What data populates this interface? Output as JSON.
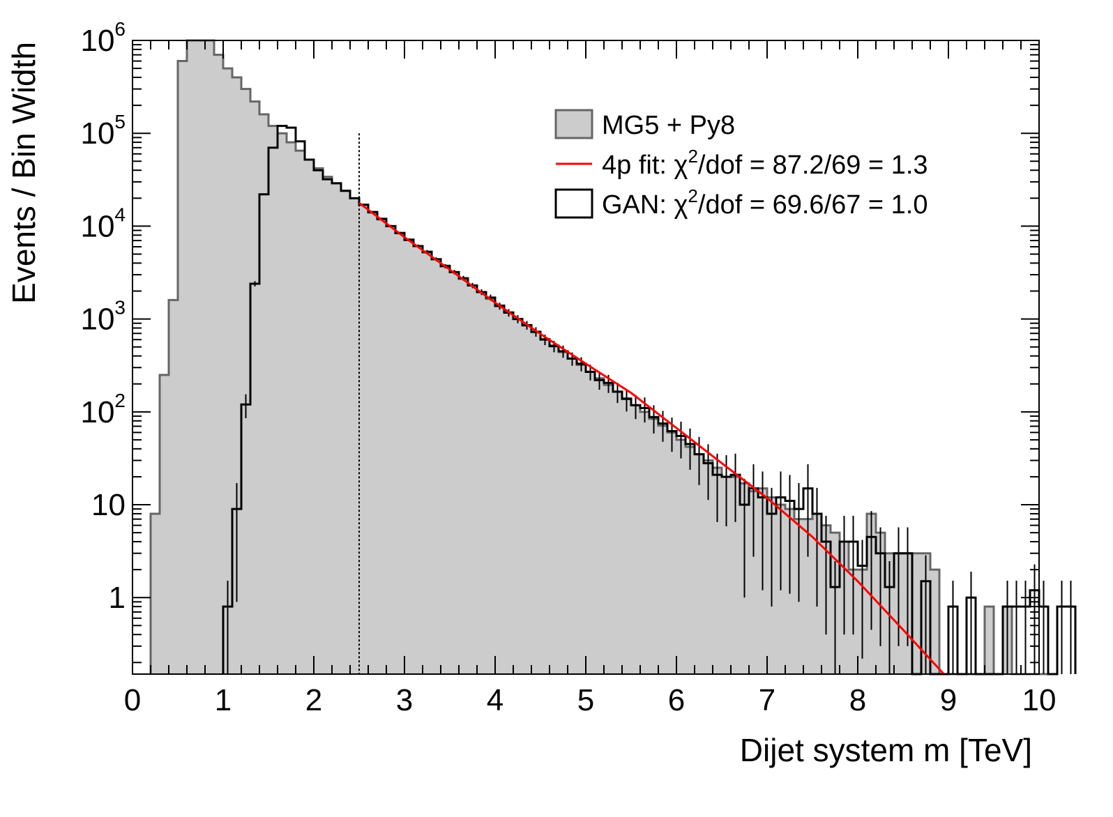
{
  "chart_data": {
    "type": "histogram",
    "xlabel": "Dijet system m [TeV]",
    "ylabel": "Events / Bin Width",
    "xlim": [
      0,
      10
    ],
    "ylim": [
      0.15,
      1000000
    ],
    "yscale": "log",
    "x_ticks": [
      "0",
      "1",
      "2",
      "3",
      "4",
      "5",
      "6",
      "7",
      "8",
      "9",
      "10"
    ],
    "y_ticks": [
      {
        "value": 1,
        "base": "1",
        "exp": ""
      },
      {
        "value": 10,
        "base": "10",
        "exp": ""
      },
      {
        "value": 100,
        "base": "10",
        "exp": "2"
      },
      {
        "value": 1000,
        "base": "10",
        "exp": "3"
      },
      {
        "value": 10000,
        "base": "10",
        "exp": "4"
      },
      {
        "value": 100000,
        "base": "10",
        "exp": "5"
      },
      {
        "value": 1000000,
        "base": "10",
        "exp": "6"
      }
    ],
    "fit_start_x": 2.5,
    "legend_position": "top-right",
    "legend": [
      {
        "key": "mg5",
        "text": "MG5 + Py8"
      },
      {
        "key": "fit",
        "pre": "4p fit: ",
        "chi": "χ",
        "sup": "2",
        "post": "/dof = 87.2/69 = 1.3"
      },
      {
        "key": "gan",
        "pre": "GAN: ",
        "chi": "χ",
        "sup": "2",
        "post": "/dof = 69.6/67 = 1.0"
      }
    ],
    "colors": {
      "mg5_fill": "#cccccc",
      "mg5_line": "#666666",
      "fit": "#ff0000",
      "gan": "#000000"
    },
    "bin_width": 0.1,
    "series": [
      {
        "name": "MG5 + Py8",
        "x_start": 0.2,
        "values": [
          8,
          250,
          1600,
          600000,
          1000000,
          1000000,
          1000000,
          700000,
          500000,
          400000,
          300000,
          220000,
          160000,
          120000,
          100000,
          80000,
          65000,
          52000,
          42000,
          34000,
          29000,
          24000,
          20000,
          17000,
          14000,
          11800,
          10000,
          8500,
          7200,
          6100,
          5200,
          4400,
          3750,
          3200,
          2700,
          2300,
          1950,
          1650,
          1400,
          1180,
          1000,
          850,
          720,
          610,
          520,
          440,
          375,
          320,
          270,
          230,
          195,
          165,
          140,
          118,
          100,
          84,
          71,
          60,
          50,
          42,
          35,
          30,
          25,
          20,
          20,
          17,
          14,
          15,
          12,
          10,
          9,
          7,
          7,
          8,
          6,
          5,
          4,
          2,
          2,
          8,
          5,
          3,
          3,
          3,
          3,
          3,
          2,
          0.1,
          0.1,
          0.1,
          0.1,
          0.1,
          0.8,
          0.1,
          0.8,
          0.1,
          0.1,
          0.1,
          0.1
        ]
      },
      {
        "name": "GAN",
        "x_start": 1.0,
        "values": [
          0.8,
          9,
          120,
          2400,
          22000,
          70000,
          120000,
          115000,
          82000,
          52000,
          40000,
          32000,
          29000,
          24000,
          20000,
          17000,
          14200,
          12000,
          10000,
          8400,
          7100,
          6100,
          5300,
          4400,
          3700,
          3200,
          2750,
          2300,
          1950,
          1700,
          1380,
          1170,
          1000,
          860,
          730,
          600,
          510,
          450,
          375,
          330,
          270,
          220,
          205,
          165,
          138,
          118,
          110,
          88,
          75,
          62,
          55,
          45,
          35,
          28,
          21,
          20,
          21,
          10,
          15,
          12,
          8,
          12,
          11,
          9,
          15,
          8,
          4,
          1.3,
          4,
          4,
          2.2,
          4.5,
          3,
          1.3,
          3,
          3,
          0.1,
          1.5,
          0.1,
          0.1,
          0.8,
          0.1,
          1,
          0.1,
          0.1,
          0.1,
          0.8,
          0.8,
          0.8,
          1.2,
          0.8,
          0.1,
          0.8,
          0.8
        ]
      },
      {
        "name": "4p fit",
        "points": [
          [
            2.5,
            17800
          ],
          [
            3,
            7600
          ],
          [
            3.5,
            3400
          ],
          [
            4,
            1500
          ],
          [
            4.5,
            690
          ],
          [
            5,
            330
          ],
          [
            5.5,
            160
          ],
          [
            6,
            67
          ],
          [
            6.5,
            28
          ],
          [
            7,
            11.8
          ],
          [
            7.5,
            4.5
          ],
          [
            8,
            1.5
          ],
          [
            8.5,
            0.45
          ],
          [
            8.95,
            0.15
          ]
        ]
      }
    ]
  }
}
